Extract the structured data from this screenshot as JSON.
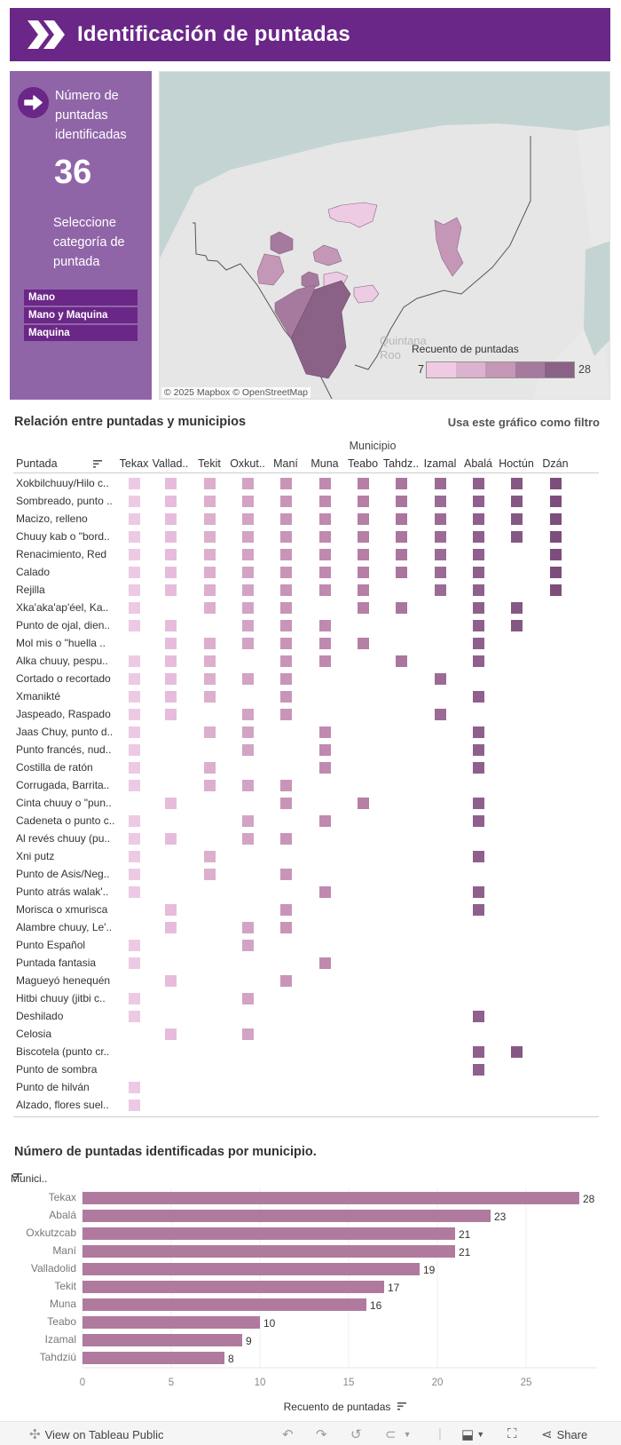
{
  "header": {
    "title": "Identificación de puntadas",
    "logo_icon": "double-chevron-right-icon"
  },
  "sidebar": {
    "arrow_icon": "arrow-right-circle-icon",
    "count_label": "Número de puntadas identificadas",
    "count_value": "36",
    "select_label": "Seleccione categoría de puntada",
    "categories": [
      "Mano",
      "Mano y Maquina",
      "Maquina"
    ]
  },
  "map": {
    "attribution": "© 2025 Mapbox  © OpenStreetMap",
    "region_label": "Quintana Roo",
    "legend": {
      "title": "Recuento de puntadas",
      "min": "7",
      "max": "28",
      "colors": [
        "#eecbe3",
        "#dbb2cf",
        "#c597b6",
        "#a57a9e",
        "#8b6287"
      ]
    }
  },
  "matrix": {
    "title": "Relación entre puntadas y municipios",
    "filter_hint": "Usa este gráfico como filtro",
    "column_group": "Municipio",
    "row_header": "Puntada",
    "columns": [
      "Tekax",
      "Vallad..",
      "Tekit",
      "Oxkut..",
      "Maní",
      "Muna",
      "Teabo",
      "Tahdz..",
      "Izamal",
      "Abalá",
      "Hoctún",
      "Dzán"
    ],
    "column_colors": [
      "#eccae3",
      "#e7bcdb",
      "#ddaecd",
      "#d3a3c5",
      "#c994b8",
      "#c089af",
      "#b67fa5",
      "#ab769d",
      "#9c6b95",
      "#8f608d",
      "#855884",
      "#7d4e7b"
    ],
    "rows": [
      {
        "name": "Xokbilchuuy/Hilo c..",
        "cells": [
          1,
          1,
          1,
          1,
          1,
          1,
          1,
          1,
          1,
          1,
          1,
          1
        ]
      },
      {
        "name": "Sombreado, punto ..",
        "cells": [
          1,
          1,
          1,
          1,
          1,
          1,
          1,
          1,
          1,
          1,
          1,
          1
        ]
      },
      {
        "name": "Macizo, relleno",
        "cells": [
          1,
          1,
          1,
          1,
          1,
          1,
          1,
          1,
          1,
          1,
          1,
          1
        ]
      },
      {
        "name": "Chuuy kab o \"bord..",
        "cells": [
          1,
          1,
          1,
          1,
          1,
          1,
          1,
          1,
          1,
          1,
          1,
          1
        ]
      },
      {
        "name": "Renacimiento, Red",
        "cells": [
          1,
          1,
          1,
          1,
          1,
          1,
          1,
          1,
          1,
          1,
          0,
          1
        ]
      },
      {
        "name": "Calado",
        "cells": [
          1,
          1,
          1,
          1,
          1,
          1,
          1,
          1,
          1,
          1,
          0,
          1
        ]
      },
      {
        "name": "Rejilla",
        "cells": [
          1,
          1,
          1,
          1,
          1,
          1,
          1,
          0,
          1,
          1,
          0,
          1
        ]
      },
      {
        "name": "Xka'aka'ap'éel, Ka..",
        "cells": [
          1,
          0,
          1,
          1,
          1,
          0,
          1,
          1,
          0,
          1,
          1,
          0
        ]
      },
      {
        "name": "Punto de ojal, dien..",
        "cells": [
          1,
          1,
          0,
          1,
          1,
          1,
          0,
          0,
          0,
          1,
          1,
          0
        ]
      },
      {
        "name": "Mol mis o \"huella ..",
        "cells": [
          0,
          1,
          1,
          1,
          1,
          1,
          1,
          0,
          0,
          1,
          0,
          0
        ]
      },
      {
        "name": "Alka chuuy, pespu..",
        "cells": [
          1,
          1,
          1,
          0,
          1,
          1,
          0,
          1,
          0,
          1,
          0,
          0
        ]
      },
      {
        "name": "Cortado o recortado",
        "cells": [
          1,
          1,
          1,
          1,
          1,
          0,
          0,
          0,
          1,
          0,
          0,
          0
        ]
      },
      {
        "name": "Xmanikté",
        "cells": [
          1,
          1,
          1,
          0,
          1,
          0,
          0,
          0,
          0,
          1,
          0,
          0
        ]
      },
      {
        "name": "Jaspeado, Raspado",
        "cells": [
          1,
          1,
          0,
          1,
          1,
          0,
          0,
          0,
          1,
          0,
          0,
          0
        ]
      },
      {
        "name": "Jaas Chuy, punto d..",
        "cells": [
          1,
          0,
          1,
          1,
          0,
          1,
          0,
          0,
          0,
          1,
          0,
          0
        ]
      },
      {
        "name": "Punto francés, nud..",
        "cells": [
          1,
          0,
          0,
          1,
          0,
          1,
          0,
          0,
          0,
          1,
          0,
          0
        ]
      },
      {
        "name": "Costilla de ratón",
        "cells": [
          1,
          0,
          1,
          0,
          0,
          1,
          0,
          0,
          0,
          1,
          0,
          0
        ]
      },
      {
        "name": "Corrugada, Barrita..",
        "cells": [
          1,
          0,
          1,
          1,
          1,
          0,
          0,
          0,
          0,
          0,
          0,
          0
        ]
      },
      {
        "name": "Cinta chuuy o \"pun..",
        "cells": [
          0,
          1,
          0,
          0,
          1,
          0,
          1,
          0,
          0,
          1,
          0,
          0
        ]
      },
      {
        "name": "Cadeneta o punto c..",
        "cells": [
          1,
          0,
          0,
          1,
          0,
          1,
          0,
          0,
          0,
          1,
          0,
          0
        ]
      },
      {
        "name": "Al revés chuuy (pu..",
        "cells": [
          1,
          1,
          0,
          1,
          1,
          0,
          0,
          0,
          0,
          0,
          0,
          0
        ]
      },
      {
        "name": "Xni putz",
        "cells": [
          1,
          0,
          1,
          0,
          0,
          0,
          0,
          0,
          0,
          1,
          0,
          0
        ]
      },
      {
        "name": "Punto de Asis/Neg..",
        "cells": [
          1,
          0,
          1,
          0,
          1,
          0,
          0,
          0,
          0,
          0,
          0,
          0
        ]
      },
      {
        "name": "Punto atrás walak'..",
        "cells": [
          1,
          0,
          0,
          0,
          0,
          1,
          0,
          0,
          0,
          1,
          0,
          0
        ]
      },
      {
        "name": "Morisca o xmurisca",
        "cells": [
          0,
          1,
          0,
          0,
          1,
          0,
          0,
          0,
          0,
          1,
          0,
          0
        ]
      },
      {
        "name": "Alambre chuuy, Le'..",
        "cells": [
          0,
          1,
          0,
          1,
          1,
          0,
          0,
          0,
          0,
          0,
          0,
          0
        ]
      },
      {
        "name": "Punto Español",
        "cells": [
          1,
          0,
          0,
          1,
          0,
          0,
          0,
          0,
          0,
          0,
          0,
          0
        ]
      },
      {
        "name": "Puntada fantasia",
        "cells": [
          1,
          0,
          0,
          0,
          0,
          1,
          0,
          0,
          0,
          0,
          0,
          0
        ]
      },
      {
        "name": "Magueyó henequén",
        "cells": [
          0,
          1,
          0,
          0,
          1,
          0,
          0,
          0,
          0,
          0,
          0,
          0
        ]
      },
      {
        "name": "Hitbi chuuy (jitbi c..",
        "cells": [
          1,
          0,
          0,
          1,
          0,
          0,
          0,
          0,
          0,
          0,
          0,
          0
        ]
      },
      {
        "name": "Deshilado",
        "cells": [
          1,
          0,
          0,
          0,
          0,
          0,
          0,
          0,
          0,
          1,
          0,
          0
        ]
      },
      {
        "name": "Celosia",
        "cells": [
          0,
          1,
          0,
          1,
          0,
          0,
          0,
          0,
          0,
          0,
          0,
          0
        ]
      },
      {
        "name": "Biscotela (punto cr..",
        "cells": [
          0,
          0,
          0,
          0,
          0,
          0,
          0,
          0,
          0,
          1,
          1,
          0
        ]
      },
      {
        "name": "Punto de sombra",
        "cells": [
          0,
          0,
          0,
          0,
          0,
          0,
          0,
          0,
          0,
          1,
          0,
          0
        ]
      },
      {
        "name": "Punto de hilván",
        "cells": [
          1,
          0,
          0,
          0,
          0,
          0,
          0,
          0,
          0,
          0,
          0,
          0
        ]
      },
      {
        "name": "Alzado, flores suel..",
        "cells": [
          1,
          0,
          0,
          0,
          0,
          0,
          0,
          0,
          0,
          0,
          0,
          0
        ]
      }
    ]
  },
  "bar_section": {
    "title": "Número de puntadas identificadas por municipio.",
    "axis_header": "Munici.."
  },
  "chart_data": {
    "type": "bar",
    "orientation": "horizontal",
    "title": "Número de puntadas identificadas por municipio.",
    "categories": [
      "Tekax",
      "Abalá",
      "Oxkutzcab",
      "Maní",
      "Valladolid",
      "Tekit",
      "Muna",
      "Teabo",
      "Izamal",
      "Tahdziú"
    ],
    "values": [
      28,
      23,
      21,
      21,
      19,
      17,
      16,
      10,
      9,
      8
    ],
    "xlabel": "Recuento de puntadas",
    "ylabel": "Munici..",
    "xlim": [
      0,
      29
    ],
    "xticks": [
      0,
      5,
      10,
      15,
      20,
      25
    ],
    "grid": true,
    "bar_color": "#b07a9f",
    "data_labels": true
  },
  "toolbar": {
    "view_label": "View on Tableau Public",
    "share_label": "Share"
  }
}
